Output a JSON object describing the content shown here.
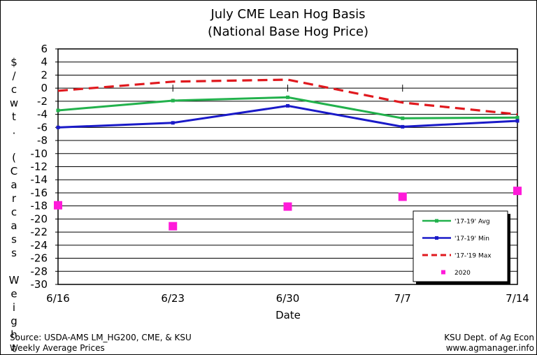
{
  "chart_data": {
    "type": "line",
    "title": "July CME Lean Hog Basis",
    "subtitle": "(National Base Hog Price)",
    "xlabel": "Date",
    "ylabel": "$/cwt. (Carcass Weight)",
    "x": [
      "6/16",
      "6/23",
      "6/30",
      "7/7",
      "7/14"
    ],
    "ylim": [
      -30,
      6
    ],
    "yticks": [
      6,
      4,
      2,
      0,
      -2,
      -4,
      -6,
      -8,
      -10,
      -12,
      -14,
      -16,
      -18,
      -20,
      -22,
      -24,
      -26,
      -28,
      -30
    ],
    "grid": "horizontal",
    "legend_position": "lower-right",
    "series": [
      {
        "name": "'17-19' Avg",
        "style": "solid",
        "color": "#22b14c",
        "values": [
          -3.4,
          -1.9,
          -1.4,
          -4.6,
          -4.5
        ]
      },
      {
        "name": "'17-19' Min",
        "style": "solid",
        "color": "#1a1ac8",
        "values": [
          -6.0,
          -5.3,
          -2.7,
          -5.9,
          -5.0
        ]
      },
      {
        "name": "'17-'19 Max",
        "style": "dashed",
        "color": "#e0191e",
        "values": [
          -0.4,
          1.0,
          1.3,
          -2.2,
          -4.0
        ]
      },
      {
        "name": "2020",
        "style": "markers",
        "color": "#ff1ad9",
        "values": [
          -17.9,
          -21.1,
          -18.1,
          -16.6,
          -15.7
        ]
      }
    ],
    "source_left_1": "Source:  USDA-AMS LM_HG200, CME, & KSU",
    "source_left_2": "Weekly Average Prices",
    "source_right_1": "KSU Dept. of Ag Econ",
    "source_right_2": "www.agmanager.info"
  }
}
